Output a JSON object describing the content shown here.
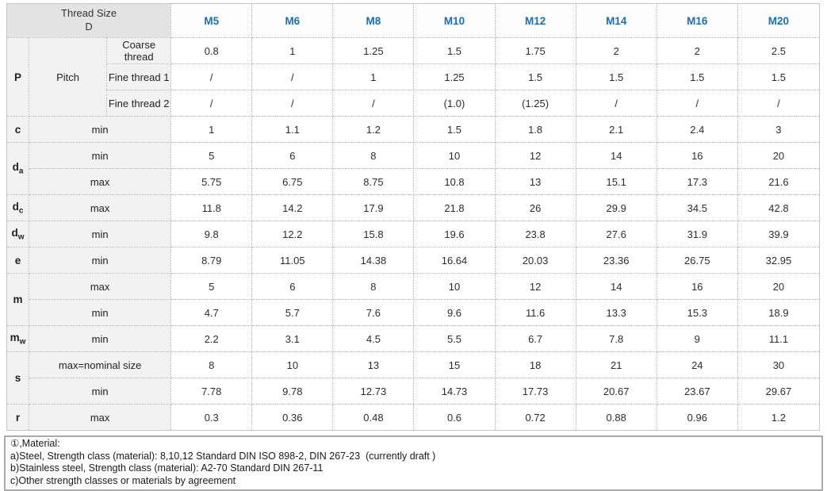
{
  "colors": {
    "corner_header_bg": "#e3e3e3",
    "label_cell_bg": "#f2f2f2",
    "data_cell_bg": "#ffffff",
    "dotted_border": "#b4b4b4",
    "column_header_text": "#1b6fb5",
    "body_text": "#2d2d2d",
    "notes_border": "#a9a9a9"
  },
  "table": {
    "corner_header": {
      "line1": "Thread Size",
      "line2": "D"
    },
    "columns": [
      "M5",
      "M6",
      "M8",
      "M10",
      "M12",
      "M14",
      "M16",
      "M20"
    ],
    "groups": [
      {
        "label": "P",
        "sub": "",
        "mid_label": "Pitch",
        "rows": [
          {
            "label": "Coarse thread",
            "values": [
              "0.8",
              "1",
              "1.25",
              "1.5",
              "1.75",
              "2",
              "2",
              "2.5"
            ]
          },
          {
            "label": "Fine thread 1",
            "values": [
              "/",
              "/",
              "1",
              "1.25",
              "1.5",
              "1.5",
              "1.5",
              "1.5"
            ]
          },
          {
            "label": "Fine thread 2",
            "values": [
              "/",
              "/",
              "/",
              "(1.0)",
              "(1.25)",
              "/",
              "/",
              "/"
            ]
          }
        ]
      },
      {
        "label": "c",
        "sub": "",
        "mid_label": "",
        "rows": [
          {
            "label": "min",
            "values": [
              "1",
              "1.1",
              "1.2",
              "1.5",
              "1.8",
              "2.1",
              "2.4",
              "3"
            ]
          }
        ]
      },
      {
        "label": "d",
        "sub": "a",
        "mid_label": "",
        "rows": [
          {
            "label": "min",
            "values": [
              "5",
              "6",
              "8",
              "10",
              "12",
              "14",
              "16",
              "20"
            ]
          },
          {
            "label": "max",
            "values": [
              "5.75",
              "6.75",
              "8.75",
              "10.8",
              "13",
              "15.1",
              "17.3",
              "21.6"
            ]
          }
        ]
      },
      {
        "label": "d",
        "sub": "c",
        "mid_label": "",
        "rows": [
          {
            "label": "max",
            "values": [
              "11.8",
              "14.2",
              "17.9",
              "21.8",
              "26",
              "29.9",
              "34.5",
              "42.8"
            ]
          }
        ]
      },
      {
        "label": "d",
        "sub": "w",
        "mid_label": "",
        "rows": [
          {
            "label": "min",
            "values": [
              "9.8",
              "12.2",
              "15.8",
              "19.6",
              "23.8",
              "27.6",
              "31.9",
              "39.9"
            ]
          }
        ]
      },
      {
        "label": "e",
        "sub": "",
        "mid_label": "",
        "rows": [
          {
            "label": "min",
            "values": [
              "8.79",
              "11.05",
              "14.38",
              "16.64",
              "20.03",
              "23.36",
              "26.75",
              "32.95"
            ]
          }
        ]
      },
      {
        "label": "m",
        "sub": "",
        "mid_label": "",
        "rows": [
          {
            "label": "max",
            "values": [
              "5",
              "6",
              "8",
              "10",
              "12",
              "14",
              "16",
              "20"
            ]
          },
          {
            "label": "min",
            "values": [
              "4.7",
              "5.7",
              "7.6",
              "9.6",
              "11.6",
              "13.3",
              "15.3",
              "18.9"
            ]
          }
        ]
      },
      {
        "label": "m",
        "sub": "w",
        "mid_label": "",
        "rows": [
          {
            "label": "min",
            "values": [
              "2.2",
              "3.1",
              "4.5",
              "5.5",
              "6.7",
              "7.8",
              "9",
              "11.1"
            ]
          }
        ]
      },
      {
        "label": "s",
        "sub": "",
        "mid_label": "",
        "rows": [
          {
            "label": "max=nominal size",
            "values": [
              "8",
              "10",
              "13",
              "15",
              "18",
              "21",
              "24",
              "30"
            ]
          },
          {
            "label": "min",
            "values": [
              "7.78",
              "9.78",
              "12.73",
              "14.73",
              "17.73",
              "20.67",
              "23.67",
              "29.67"
            ]
          }
        ]
      },
      {
        "label": "r",
        "sub": "",
        "mid_label": "",
        "rows": [
          {
            "label": "max",
            "values": [
              "0.3",
              "0.36",
              "0.48",
              "0.6",
              "0.72",
              "0.88",
              "0.96",
              "1.2"
            ]
          }
        ]
      }
    ]
  },
  "footer": {
    "lines": [
      "①,Material:",
      "a)Steel, Strength class (material): 8,10,12 Standard DIN ISO 898-2, DIN 267-23  (currently draft )",
      "b)Stainless steel, Strength class (material): A2-70 Standard DIN 267-11",
      "c)Other strength classes or materials by agreement"
    ]
  }
}
